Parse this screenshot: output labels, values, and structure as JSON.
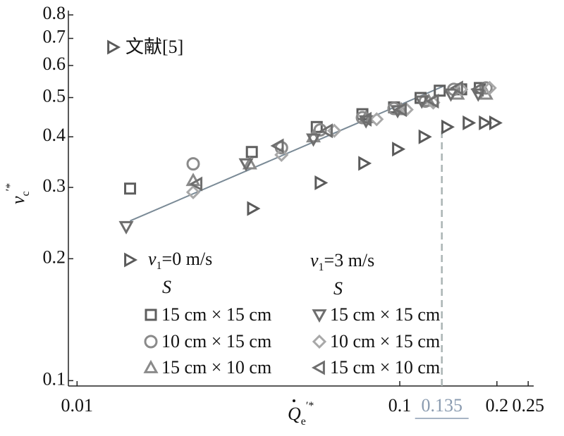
{
  "chart_data": {
    "type": "scatter",
    "x_label": {
      "main": "Q",
      "sub": "e",
      "sup": "′*"
    },
    "y_label": {
      "main": "v",
      "sub": "c",
      "sup": "′*"
    },
    "xlog": true,
    "ylog": true,
    "xlim": [
      0.0094,
      0.26
    ],
    "ylim": [
      0.097,
      0.82
    ],
    "xticks": [
      0.01,
      0.1,
      0.2,
      0.25
    ],
    "yticks": [
      0.1,
      0.2,
      0.3,
      0.4,
      0.5,
      0.6,
      0.7,
      0.8
    ],
    "reference": {
      "x": 0.135,
      "label": "0.135",
      "color": "#8a9bb0"
    },
    "fit_line": {
      "x": [
        0.0146,
        0.137
      ],
      "y": [
        0.248,
        0.534
      ],
      "color": "#7a8a96"
    },
    "legend_groups": [
      {
        "title": {
          "main": "v",
          "sub": "1",
          "rest": "=0 m/s"
        },
        "subtitle": "S"
      },
      {
        "title": {
          "main": "v",
          "sub": "1",
          "rest": "=3 m/s"
        },
        "subtitle": "S"
      }
    ],
    "series": [
      {
        "name": "文献[5]",
        "marker": "triangle-right",
        "color": "#5a5a5a",
        "x": [
          0.035,
          0.0567,
          0.0774,
          0.0985,
          0.119,
          0.14,
          0.163,
          0.183,
          0.197
        ],
        "values": [
          0.266,
          0.308,
          0.344,
          0.373,
          0.4,
          0.423,
          0.433,
          0.433,
          0.433
        ]
      },
      {
        "name": "15 cm × 15 cm",
        "marker": "square",
        "color": "#5e5e5e",
        "x": [
          0.0146,
          0.0348,
          0.0553,
          0.0766,
          0.096,
          0.116,
          0.133,
          0.155,
          0.177
        ],
        "values": [
          0.298,
          0.367,
          0.423,
          0.455,
          0.473,
          0.499,
          0.52,
          0.524,
          0.528
        ]
      },
      {
        "name": "10 cm × 15 cm",
        "marker": "circle",
        "color": "#8a8a8a",
        "x": [
          0.0229,
          0.043,
          0.0567,
          0.0766,
          0.096,
          0.12,
          0.147,
          0.185
        ],
        "values": [
          0.343,
          0.376,
          0.416,
          0.446,
          0.47,
          0.49,
          0.524,
          0.528
        ]
      },
      {
        "name": "15 cm × 10 cm",
        "marker": "triangle-up",
        "color": "#8a8a8a",
        "x": [
          0.0229,
          0.0343,
          0.054,
          0.0786,
          0.101,
          0.123,
          0.151,
          0.185
        ],
        "values": [
          0.312,
          0.343,
          0.4,
          0.446,
          0.467,
          0.49,
          0.51,
          0.51
        ]
      },
      {
        "name": "15 cm × 15 cm",
        "marker": "triangle-down",
        "color": "#6e6e6e",
        "x": [
          0.0142,
          0.0334,
          0.054,
          0.0786,
          0.0985,
          0.117,
          0.144,
          0.175
        ],
        "values": [
          0.24,
          0.343,
          0.395,
          0.438,
          0.464,
          0.49,
          0.51,
          0.51
        ]
      },
      {
        "name": "10 cm × 15 cm",
        "marker": "diamond",
        "color": "#a8a8a8",
        "x": [
          0.0229,
          0.043,
          0.0627,
          0.0848,
          0.105,
          0.127,
          0.155,
          0.19
        ],
        "values": [
          0.292,
          0.361,
          0.414,
          0.442,
          0.467,
          0.486,
          0.524,
          0.528
        ]
      },
      {
        "name": "15 cm × 10 cm",
        "marker": "triangle-left",
        "color": "#6e6e6e",
        "x": [
          0.0235,
          0.042,
          0.0596,
          0.0786,
          0.101,
          0.127,
          0.151,
          0.175
        ],
        "values": [
          0.306,
          0.38,
          0.414,
          0.442,
          0.467,
          0.49,
          0.528,
          0.524
        ]
      }
    ]
  }
}
